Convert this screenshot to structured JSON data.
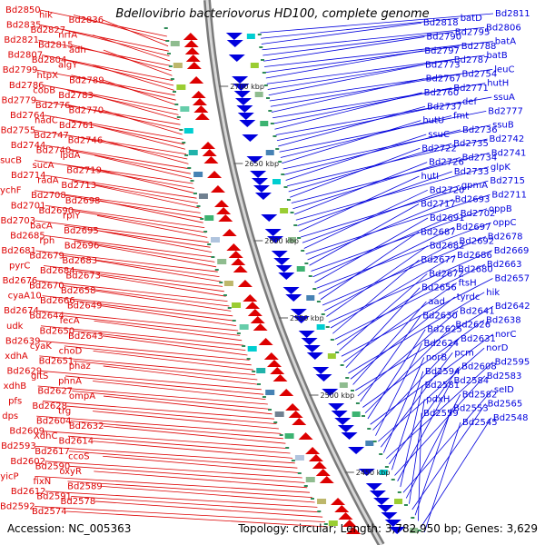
{
  "title": "Bdellovibrio bacteriovorus HD100, complete genome",
  "footer": {
    "accession_label": "Accession:",
    "accession": "NC_005363",
    "topology_label": "Topology:",
    "topology": "circular",
    "length_label": "Length:",
    "length": "3,782,950 bp",
    "genes_label": "Genes:",
    "genes": "3,629"
  },
  "colors": {
    "forward_strand": "#dd0000",
    "reverse_strand": "#0000dd",
    "backbone": "#888888",
    "tick": "#118811"
  },
  "ticks": [
    "2700 kbp",
    "2650 kbp",
    "2600 kbp",
    "2550 kbp",
    "2500 kbp",
    "2450 kbp"
  ],
  "left_labels": [
    "Bd2850",
    "hik",
    "Bd2836",
    "Bd2835",
    "Bd2827",
    "nrfA",
    "Bd2821",
    "Bd2815",
    "adh",
    "Bd2807",
    "Bd2804",
    "algY",
    "Bd2799",
    "htpX",
    "Bd2789",
    "Bd2786",
    "cobB",
    "Bd2783",
    "Bd2779",
    "Bd2776",
    "Bd2770",
    "Bd2764",
    "nadC",
    "Bd2761",
    "Bd2755",
    "Bd2747",
    "Bd2746",
    "Bd2744",
    "Bd2740",
    "lpdA",
    "sucB",
    "sucA",
    "Bd2719",
    "Bd2714",
    "radA",
    "Bd2713",
    "ychF",
    "Bd2708",
    "Bd2698",
    "Bd2701",
    "Bd2690",
    "rplY",
    "Bd2703",
    "bacA",
    "Bd2695",
    "Bd2685",
    "rph",
    "Bd2696",
    "Bd2681",
    "Bd2679",
    "Bd2683",
    "pyrC",
    "Bd2684",
    "Bd2673",
    "Bd2676",
    "Bd2670",
    "Bd2658",
    "cyaA10",
    "Bd2666",
    "Bd2649",
    "Bd2674",
    "Bd2644",
    "fecA",
    "udk",
    "Bd2650",
    "Bd2643",
    "Bd2639",
    "cyaK",
    "choD",
    "xdhA",
    "Bd2651",
    "phaz",
    "Bd2629",
    "gltS",
    "phnA",
    "xdhB",
    "Bd2627",
    "ompA",
    "pfs",
    "Bd2628",
    "trg",
    "dps",
    "Bd2604",
    "Bd2632",
    "Bd2609",
    "XdhC",
    "Bd2614",
    "Bd2593",
    "Bd2617",
    "ccoS",
    "Bd2602",
    "Bd2590",
    "oxyR",
    "yicP",
    "fixN",
    "Bd2589",
    "Bd2612",
    "Bd2591",
    "Bd2578",
    "Bd2592",
    "Bd2574"
  ],
  "right_labels": [
    "Bd2811",
    "batD",
    "Bd2818",
    "Bd2806",
    "Bd2795",
    "Bd2790",
    "batA",
    "Bd2788",
    "Bd2797",
    "batB",
    "Bd2787",
    "Bd2773",
    "leuC",
    "Bd2754",
    "Bd2767",
    "hutH",
    "Bd2771",
    "Bd2760",
    "ssuA",
    "def",
    "Bd2737",
    "Bd2777",
    "fmt",
    "hutU",
    "ssuB",
    "Bd2736",
    "ssuC",
    "Bd2742",
    "Bd2735",
    "Bd2722",
    "Bd2741",
    "Bd2734",
    "Bd2726",
    "glpK",
    "Bd2733",
    "hutI",
    "Bd2715",
    "gpmA",
    "Bd2720",
    "Bd2711",
    "Bd2693",
    "Bd2717",
    "oppB",
    "Bd2702",
    "Bd2691",
    "oppC",
    "Bd2697",
    "Bd2687",
    "Bd2678",
    "Bd2692",
    "Bd2682",
    "Bd2669",
    "Bd2686",
    "Bd2677",
    "Bd2663",
    "Bd2680",
    "Bd2672",
    "Bd2657",
    "ftsH",
    "Bd2656",
    "hik",
    "tyrdc",
    "aad",
    "Bd2642",
    "Bd2641",
    "Bd2630",
    "Bd2638",
    "Bd2626",
    "Bd2625",
    "norC",
    "Bd2631",
    "Bd2624",
    "norD",
    "pcm",
    "norB",
    "Bd2595",
    "Bd2608",
    "Bd2594",
    "Bd2583",
    "Bd2584",
    "Bd2581",
    "seID",
    "Bd2582",
    "pdxH",
    "Bd2565",
    "Bd2553",
    "Bd2559",
    "Bd2548",
    "Bd2545"
  ]
}
